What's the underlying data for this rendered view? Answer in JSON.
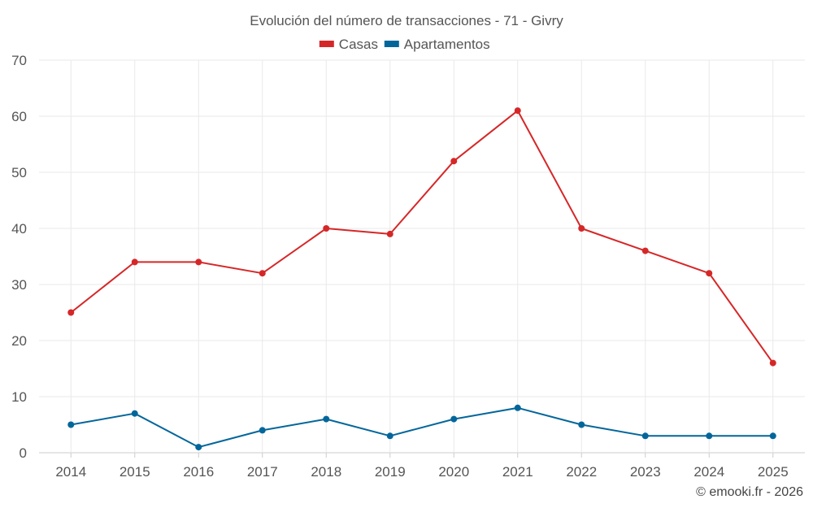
{
  "chart_data": {
    "type": "line",
    "title": "Evolución del número de transacciones - 71 - Givry",
    "categories": [
      "2014",
      "2015",
      "2016",
      "2017",
      "2018",
      "2019",
      "2020",
      "2021",
      "2022",
      "2023",
      "2024",
      "2025"
    ],
    "series": [
      {
        "name": "Casas",
        "color": "#d62728",
        "values": [
          25,
          34,
          34,
          32,
          40,
          39,
          52,
          61,
          40,
          36,
          32,
          16
        ]
      },
      {
        "name": "Apartamentos",
        "color": "#03669b",
        "values": [
          5,
          7,
          1,
          4,
          6,
          3,
          6,
          8,
          5,
          3,
          3,
          3
        ]
      }
    ],
    "ylim": [
      0,
      70
    ],
    "yticks": [
      0,
      10,
      20,
      30,
      40,
      50,
      60,
      70
    ],
    "xlabel": "",
    "ylabel": "",
    "grid": true,
    "legend_position": "top-center"
  },
  "credit": "© emooki.fr - 2026"
}
